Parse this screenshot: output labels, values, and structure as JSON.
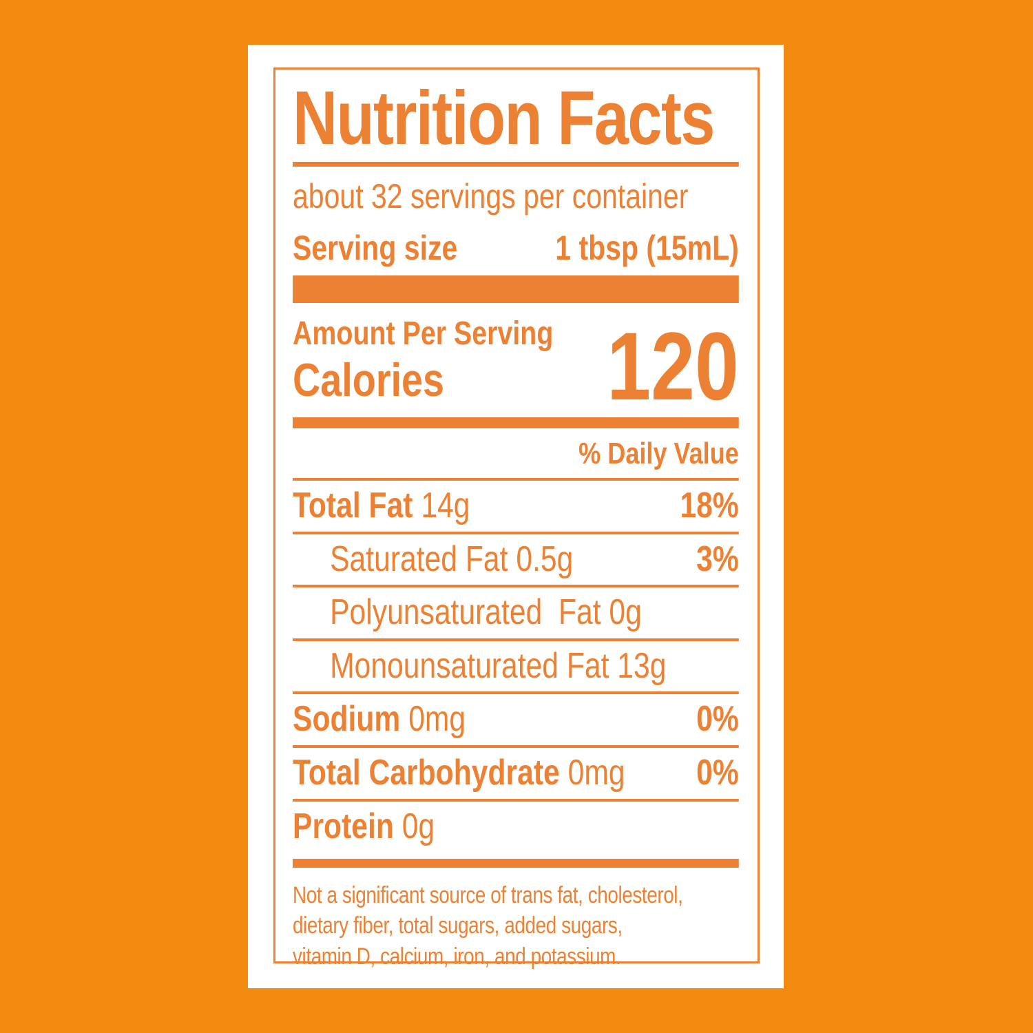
{
  "colors": {
    "background_orange": "#F28A10",
    "label_orange": "#EC8133",
    "panel_white": "#FFFFFF"
  },
  "label": {
    "title": "Nutrition Facts",
    "servings_per_container": "about 32 servings per container",
    "serving_size_label": "Serving size",
    "serving_size_value": "1 tbsp (15mL)",
    "amount_per_serving": "Amount Per Serving",
    "calories_label": "Calories",
    "calories_value": "120",
    "daily_value_header": "% Daily Value",
    "nutrients": [
      {
        "bold": "Total Fat",
        "rest": " 14g",
        "dv": "18%"
      },
      {
        "bold": "",
        "rest": "Saturated Fat 0.5g",
        "dv": "3%"
      },
      {
        "bold": "",
        "rest": "Polyunsaturated  Fat 0g",
        "dv": ""
      },
      {
        "bold": "",
        "rest": "Monounsaturated Fat 13g",
        "dv": ""
      },
      {
        "bold": "Sodium",
        "rest": " 0mg",
        "dv": "0%"
      },
      {
        "bold": "Total Carbohydrate",
        "rest": " 0mg",
        "dv": "0%"
      },
      {
        "bold": "Protein",
        "rest": " 0g",
        "dv": ""
      }
    ],
    "footnote_lines": [
      "Not a significant source of trans fat, cholesterol,",
      "dietary fiber, total sugars, added sugars,",
      "vitamin D, calcium, iron, and potassium."
    ]
  }
}
